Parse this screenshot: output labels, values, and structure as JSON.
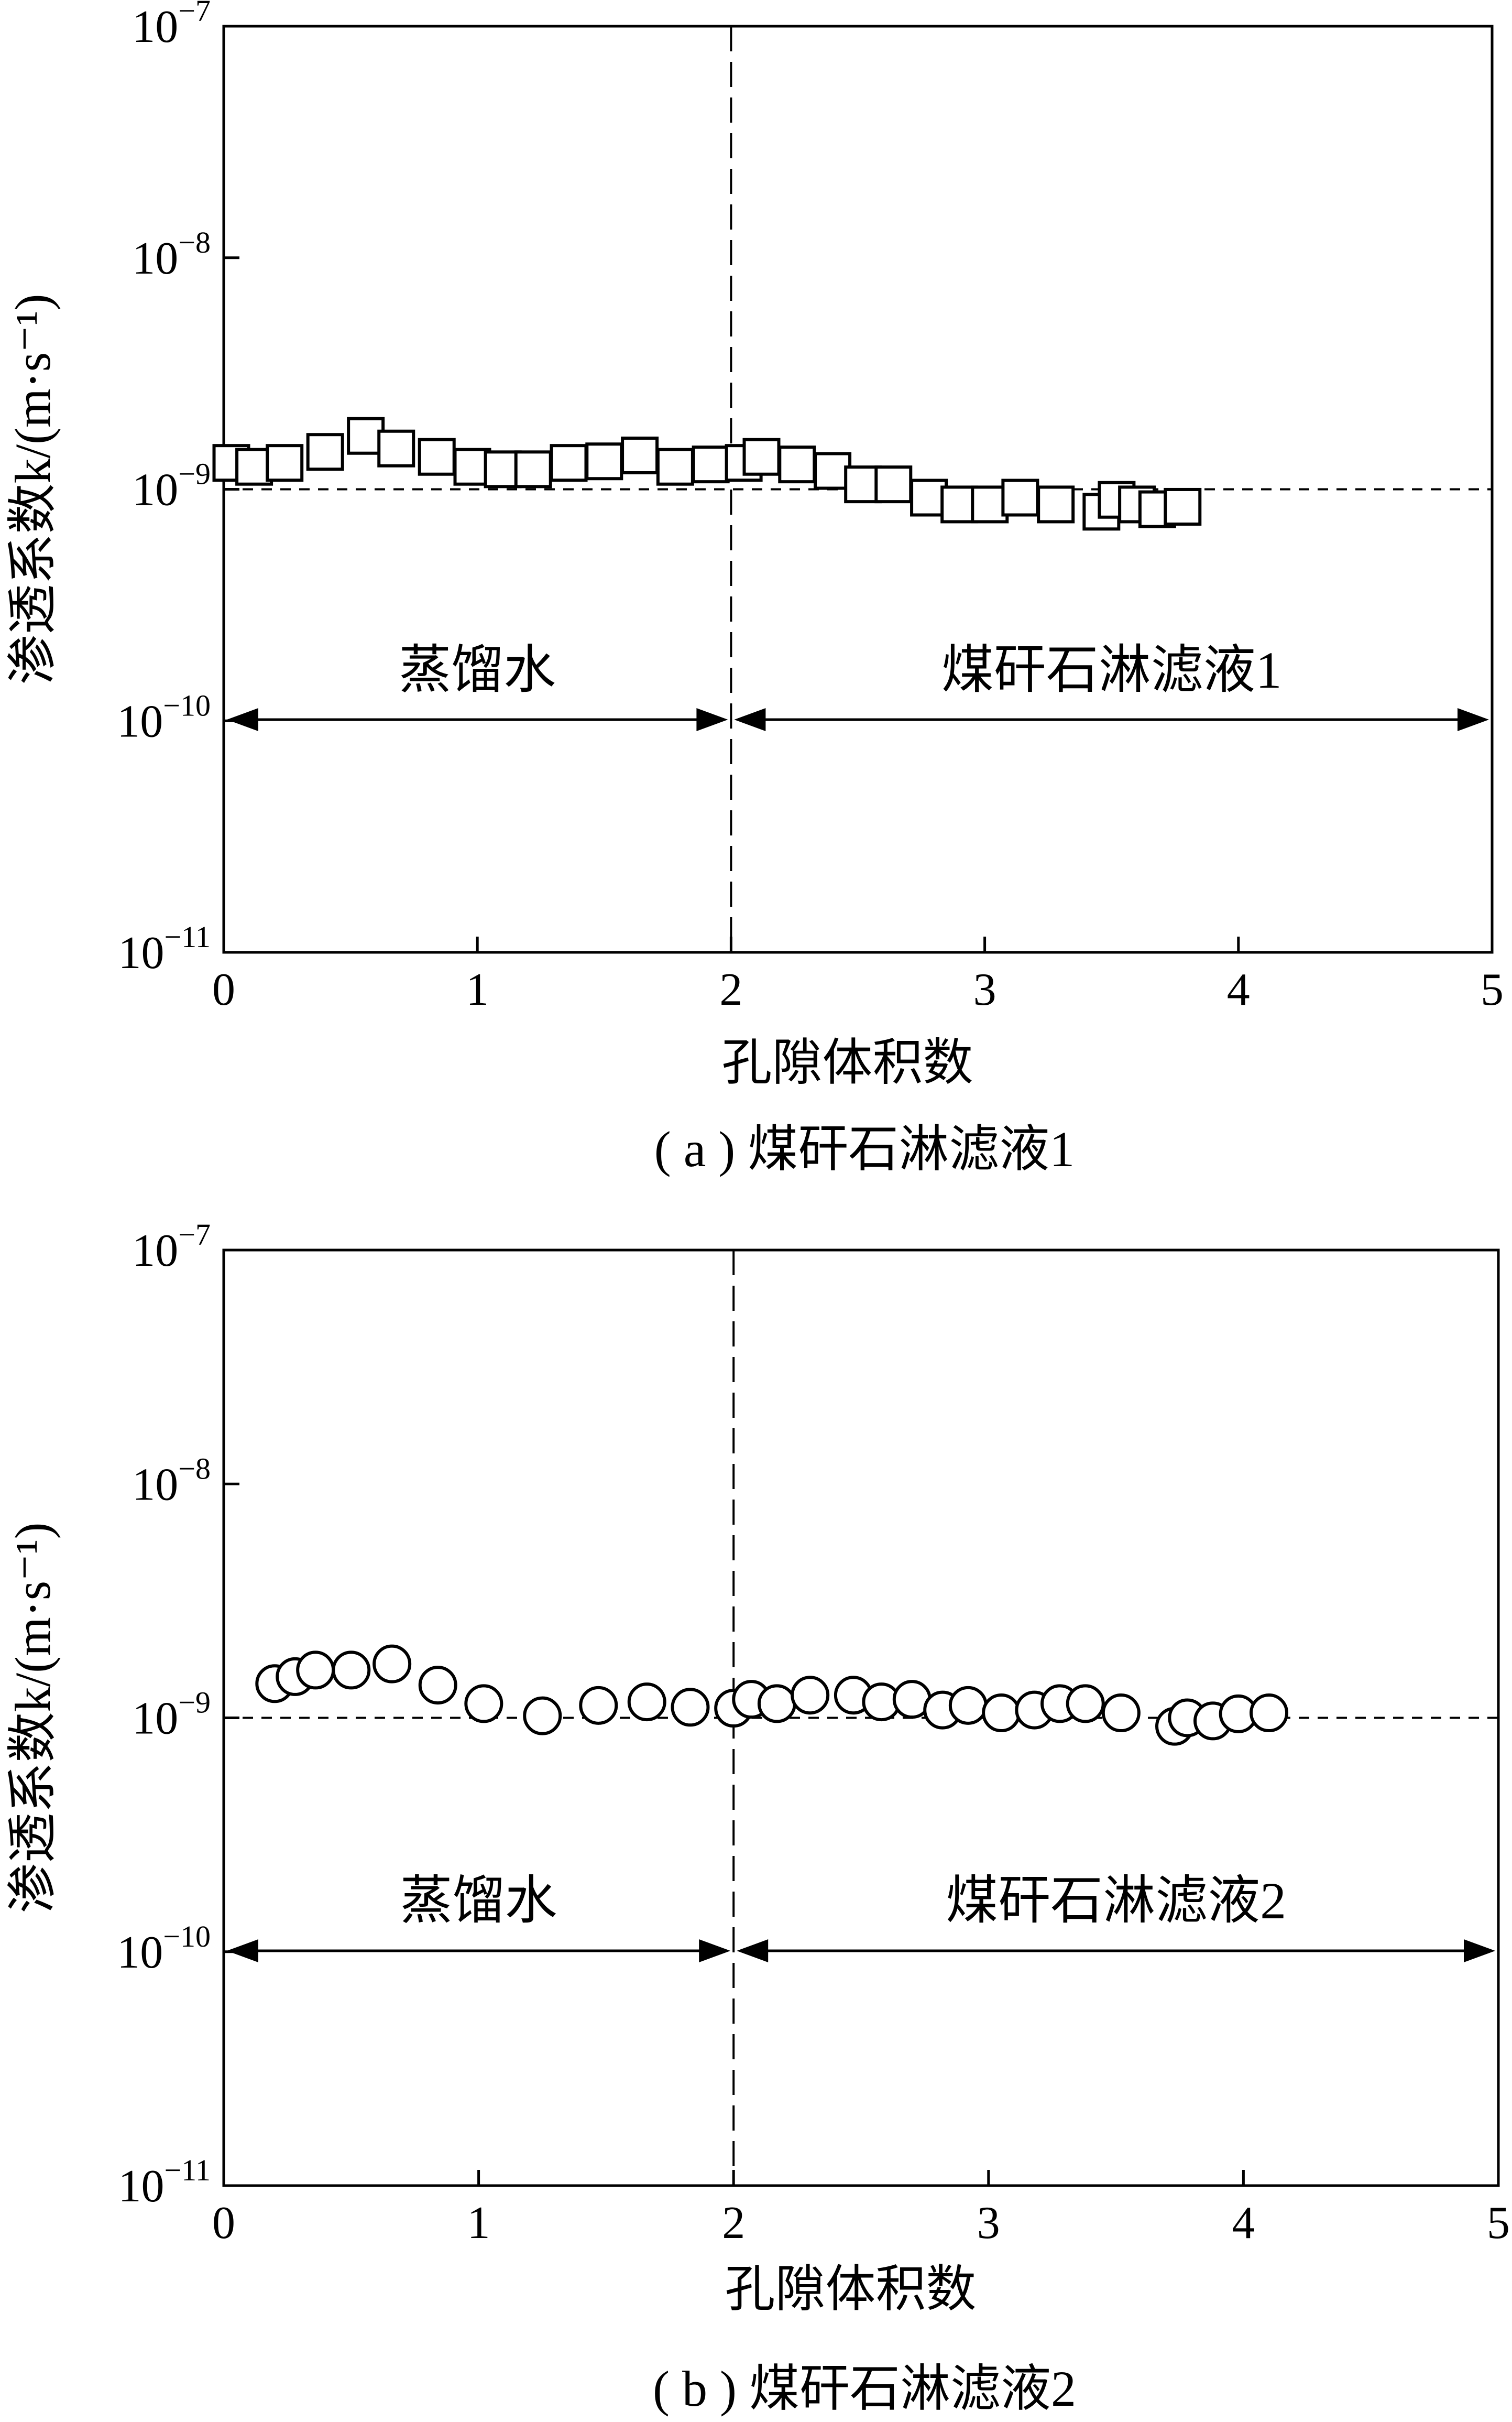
{
  "figure": {
    "panels": [
      {
        "caption": "( a ) 煤矸石淋滤液1",
        "regions": [
          {
            "label": "蒸馏水",
            "from": 0,
            "to": 2
          },
          {
            "label": "煤矸石淋滤液1",
            "from": 2,
            "to": 5
          }
        ]
      },
      {
        "caption": "( b ) 煤矸石淋滤液2",
        "regions": [
          {
            "label": "蒸馏水",
            "from": 0,
            "to": 2
          },
          {
            "label": "煤矸石淋滤液2",
            "from": 2,
            "to": 5
          }
        ]
      }
    ]
  },
  "chart_data": [
    {
      "type": "scatter",
      "marker": "square",
      "xlabel": "孔隙体积数",
      "ylabel": "渗透系数k/(m·s⁻¹)",
      "xlim": [
        0,
        5
      ],
      "ylim": [
        1e-11,
        1e-07
      ],
      "yscale": "log",
      "x_ticks": [
        "0",
        "1",
        "2",
        "3",
        "4",
        "5"
      ],
      "y_ticks": [
        {
          "base": "10",
          "exp": "−11"
        },
        {
          "base": "10",
          "exp": "−10"
        },
        {
          "base": "10",
          "exp": "−9"
        },
        {
          "base": "10",
          "exp": "−8"
        },
        {
          "base": "10",
          "exp": "−7"
        }
      ],
      "reference_line_y": 1e-09,
      "divider_x": 2,
      "x": [
        0.03,
        0.12,
        0.24,
        0.4,
        0.56,
        0.68,
        0.84,
        0.98,
        1.1,
        1.22,
        1.36,
        1.5,
        1.64,
        1.78,
        1.92,
        2.05,
        2.12,
        2.26,
        2.4,
        2.52,
        2.64,
        2.78,
        2.9,
        3.02,
        3.14,
        3.28,
        3.46,
        3.52,
        3.6,
        3.68,
        3.78
      ],
      "y": [
        1.3e-09,
        1.25e-09,
        1.3e-09,
        1.45e-09,
        1.7e-09,
        1.5e-09,
        1.38e-09,
        1.25e-09,
        1.22e-09,
        1.22e-09,
        1.3e-09,
        1.32e-09,
        1.4e-09,
        1.25e-09,
        1.28e-09,
        1.3e-09,
        1.38e-09,
        1.28e-09,
        1.2e-09,
        1.05e-09,
        1.05e-09,
        9.2e-10,
        8.6e-10,
        8.6e-10,
        9.2e-10,
        8.6e-10,
        8e-10,
        9e-10,
        8.6e-10,
        8.2e-10,
        8.4e-10
      ]
    },
    {
      "type": "scatter",
      "marker": "circle",
      "xlabel": "孔隙体积数",
      "ylabel": "渗透系数k/(m·s⁻¹)",
      "xlim": [
        0,
        5
      ],
      "ylim": [
        1e-11,
        1e-07
      ],
      "yscale": "log",
      "x_ticks": [
        "0",
        "1",
        "2",
        "3",
        "4",
        "5"
      ],
      "y_ticks": [
        {
          "base": "10",
          "exp": "−11"
        },
        {
          "base": "10",
          "exp": "−10"
        },
        {
          "base": "10",
          "exp": "−9"
        },
        {
          "base": "10",
          "exp": "−8"
        },
        {
          "base": "10",
          "exp": "−7"
        }
      ],
      "reference_line_y": 1e-09,
      "divider_x": 2,
      "x": [
        0.2,
        0.28,
        0.36,
        0.5,
        0.66,
        0.84,
        1.02,
        1.25,
        1.47,
        1.66,
        1.83,
        2.0,
        2.07,
        2.17,
        2.3,
        2.47,
        2.58,
        2.7,
        2.82,
        2.92,
        3.05,
        3.18,
        3.28,
        3.38,
        3.52,
        3.73,
        3.78,
        3.88,
        3.98,
        4.1
      ],
      "y": [
        1.4e-09,
        1.5e-09,
        1.6e-09,
        1.6e-09,
        1.7e-09,
        1.38e-09,
        1.15e-09,
        1.02e-09,
        1.13e-09,
        1.17e-09,
        1.11e-09,
        1.1e-09,
        1.2e-09,
        1.15e-09,
        1.25e-09,
        1.25e-09,
        1.17e-09,
        1.2e-09,
        1.08e-09,
        1.13e-09,
        1.05e-09,
        1.08e-09,
        1.15e-09,
        1.15e-09,
        1.05e-09,
        9.2e-10,
        1e-09,
        9.7e-10,
        1.04e-09,
        1.05e-09
      ]
    }
  ]
}
